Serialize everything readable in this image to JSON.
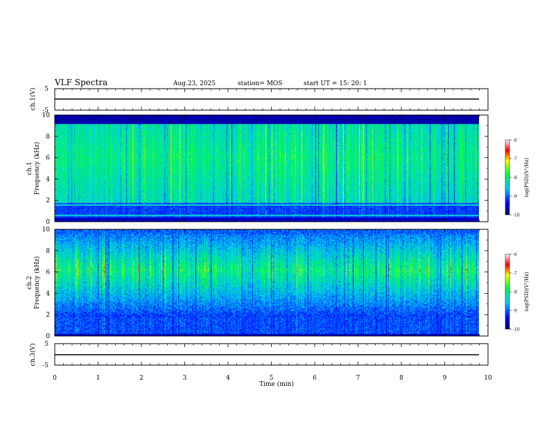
{
  "header": {
    "title": "VLF Spectra",
    "date": "Aug.23, 2025",
    "station": "station= MOS",
    "start": "start  UT =   15: 20: 1"
  },
  "chart_data": {
    "type": "heatmap",
    "xlabel": "Time  (min)",
    "xlim": [
      0,
      10
    ],
    "x_ticks": [
      "0",
      "1",
      "2",
      "3",
      "4",
      "5",
      "6",
      "7",
      "8",
      "9",
      "10"
    ],
    "panels": [
      {
        "id": "ch1-waveform",
        "ylabel": "ch.1(V)",
        "ylim": [
          -5,
          5
        ],
        "y_ticks": [
          "5",
          "-5"
        ],
        "trace_level": 0,
        "data_end_min": 9.8
      },
      {
        "id": "ch1-spectrogram",
        "ylabel": "ch.1\nFrequency (kHz)",
        "ylim": [
          0,
          10
        ],
        "y_ticks": [
          "0",
          "2",
          "4",
          "6",
          "8",
          "10"
        ],
        "data_end_min": 9.8,
        "colorbar": {
          "label": "log(PSD)(V²/Hz)",
          "range": [
            -10,
            -6
          ],
          "ticks": [
            "-6",
            "-7",
            "-8",
            "-9",
            "-10"
          ]
        }
      },
      {
        "id": "ch2-spectrogram",
        "ylabel": "ch.2\nFrequency (kHz)",
        "ylim": [
          0,
          10
        ],
        "y_ticks": [
          "0",
          "2",
          "4",
          "6",
          "8",
          "10"
        ],
        "data_end_min": 9.8,
        "colorbar": {
          "label": "log(PSD)(V²/Hz)",
          "range": [
            -10,
            -6
          ],
          "ticks": [
            "-6",
            "-7",
            "-8",
            "-9",
            "-10"
          ]
        }
      },
      {
        "id": "ch2-waveform",
        "ylabel": "ch.3(V)",
        "ylim": [
          -5,
          5
        ],
        "y_ticks": [
          "5",
          "-5"
        ],
        "trace_level": 0,
        "data_end_min": 9.8
      }
    ]
  }
}
